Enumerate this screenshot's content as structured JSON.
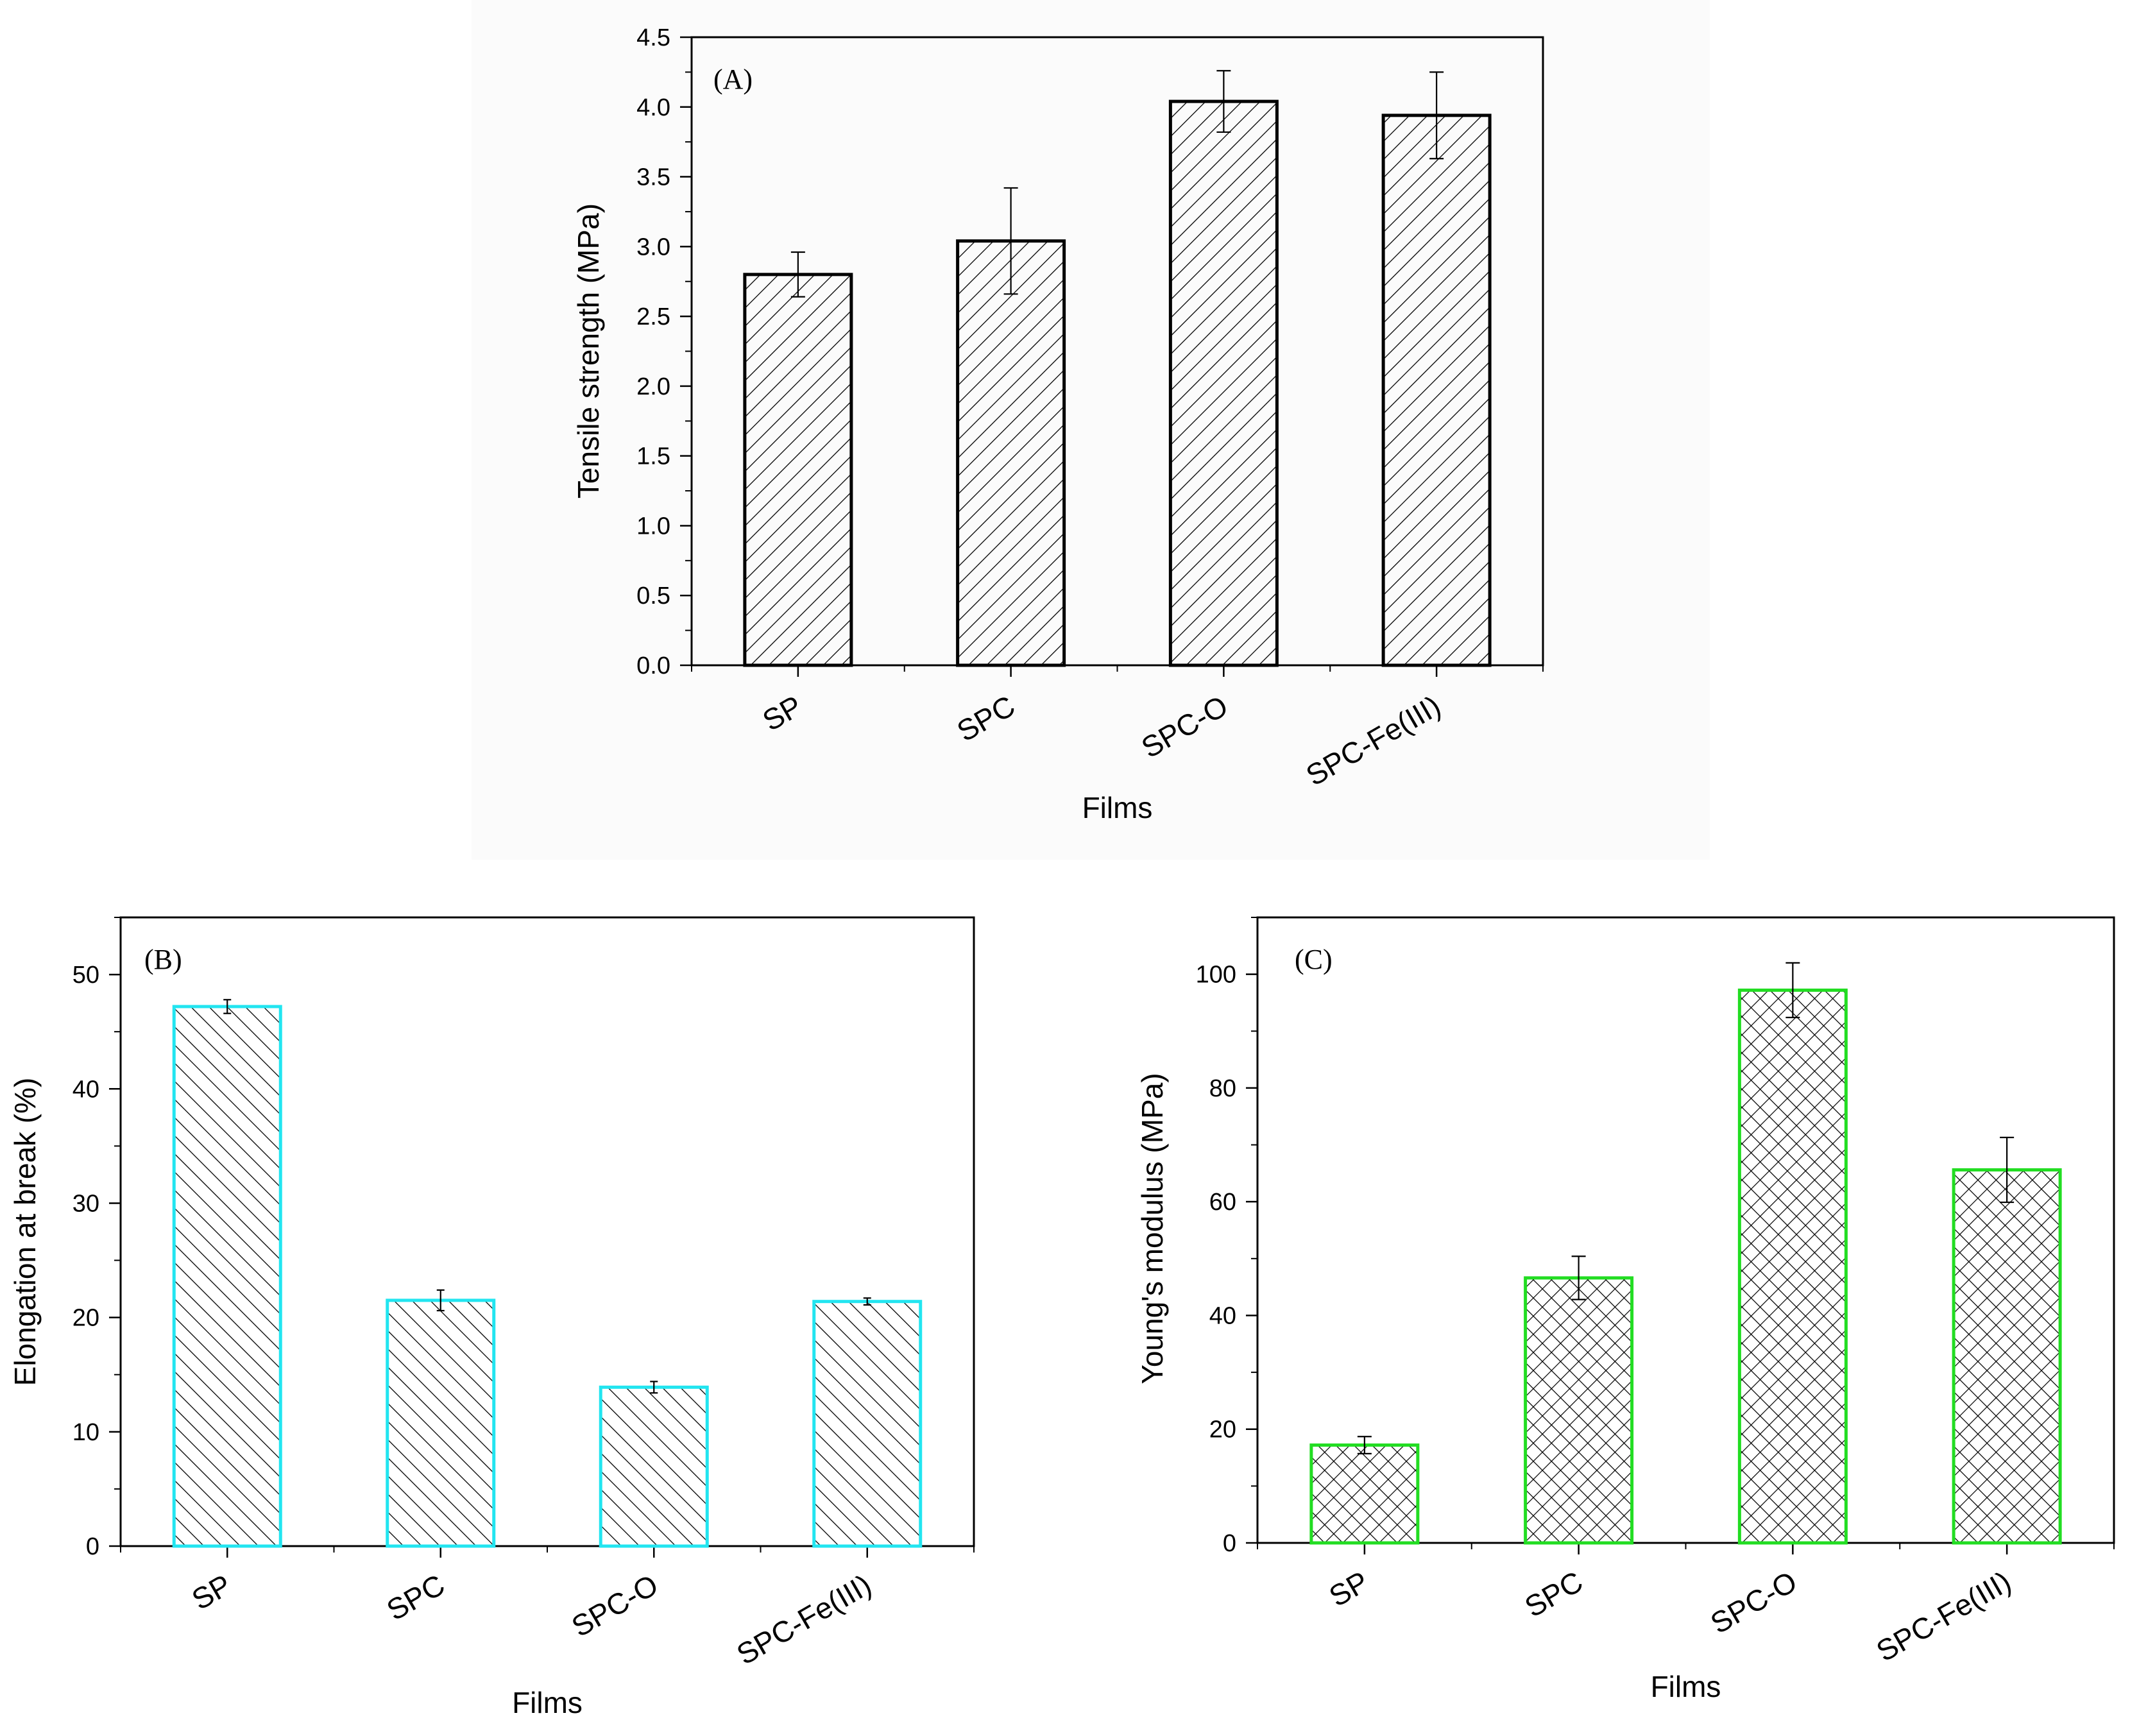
{
  "chart_data": [
    {
      "type": "bar",
      "panel_label": "(A)",
      "categories": [
        "SP",
        "SPC",
        "SPC-O",
        "SPC-Fe(III)"
      ],
      "values": [
        2.8,
        3.04,
        4.04,
        3.94
      ],
      "errors": [
        0.16,
        0.38,
        0.22,
        0.31
      ],
      "xlabel": "Films",
      "ylabel": "Tensile strength (MPa)",
      "ylim": [
        0,
        4.5
      ],
      "yticks": [
        "0.0",
        "0.5",
        "1.0",
        "1.5",
        "2.0",
        "2.5",
        "3.0",
        "3.5",
        "4.0",
        "4.5"
      ],
      "edge_color": "#000000",
      "hatch": "diagonal-right"
    },
    {
      "type": "bar",
      "panel_label": "(B)",
      "categories": [
        "SP",
        "SPC",
        "SPC-O",
        "SPC-Fe(III)"
      ],
      "values": [
        47.2,
        21.5,
        13.9,
        21.4
      ],
      "errors": [
        0.6,
        0.9,
        0.5,
        0.3
      ],
      "xlabel": "Films",
      "ylabel": "Elongation at break (%)",
      "ylim": [
        0,
        55
      ],
      "yticks": [
        "0",
        "10",
        "20",
        "30",
        "40",
        "50"
      ],
      "edge_color": "#22e5f0",
      "hatch": "diagonal-left"
    },
    {
      "type": "bar",
      "panel_label": "(C)",
      "categories": [
        "SP",
        "SPC",
        "SPC-O",
        "SPC-Fe(III)"
      ],
      "values": [
        17.2,
        46.6,
        97.2,
        65.6
      ],
      "errors": [
        1.5,
        3.8,
        4.8,
        5.7
      ],
      "xlabel": "Films",
      "ylabel": "Young's modulus (MPa)",
      "ylim": [
        0,
        110
      ],
      "yticks": [
        "0",
        "20",
        "40",
        "60",
        "80",
        "100"
      ],
      "edge_color": "#22dd22",
      "hatch": "crosshatch"
    }
  ]
}
